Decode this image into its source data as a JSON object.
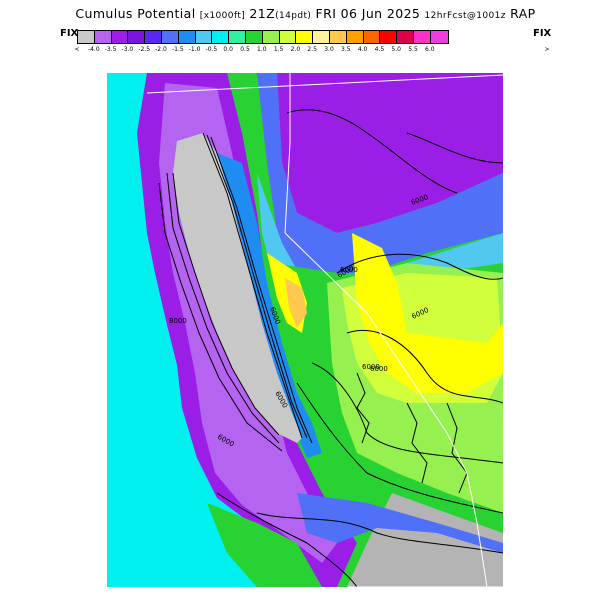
{
  "header": {
    "title_main": "Cumulus Potential",
    "title_units": "[x1000ft]",
    "title_valid": "21Z",
    "title_pdt": "(14pdt)",
    "title_date": "FRI 06 Jun 2025",
    "title_fcst": "12hrFcst@1001z",
    "title_model": "RAP"
  },
  "scale": {
    "fix_left": "FIX",
    "fix_right": "FIX",
    "arrow_left": "<",
    "arrow_right": ">",
    "colors": [
      "#c8c8c8",
      "#b464f0",
      "#9a1ee6",
      "#7a14e0",
      "#5a28f0",
      "#5070f8",
      "#1e8cf0",
      "#50c8f0",
      "#00f0f0",
      "#32f0a0",
      "#28d232",
      "#96f050",
      "#d2ff3c",
      "#ffff00",
      "#fff0a0",
      "#ffc850",
      "#ffa000",
      "#ff6400",
      "#ff0000",
      "#dc0046",
      "#ff32c8",
      "#f03cdc"
    ],
    "tick_labels": [
      "-4.0",
      "-3.5",
      "-3.0",
      "-2.5",
      "-2.0",
      "-1.5",
      "-1.0",
      "-0.5",
      "0.0",
      "0.5",
      "1.0",
      "1.5",
      "2.0",
      "2.5",
      "3.0",
      "3.5",
      "4.0",
      "4.5",
      "5.0",
      "5.5",
      "6.0"
    ]
  },
  "map": {
    "contour_labels": [
      "6000",
      "6000",
      "6000",
      "6000",
      "6000",
      "6000",
      "6000",
      "6000",
      "8000",
      "6000"
    ],
    "colors": {
      "ocean": "#00f0f0",
      "valley": "#c8c8c8",
      "coast_purple": "#9a1ee6",
      "coast_lav": "#b464f0",
      "blue": "#5070f8",
      "sky": "#1e8cf0",
      "lightblue": "#50c8f0",
      "green": "#28d232",
      "lime": "#96f050",
      "yellowgreen": "#d2ff3c",
      "yellow": "#ffff00",
      "orange": "#ffc850",
      "desert_gray": "#b4b4b4",
      "contour": "#000000"
    }
  }
}
